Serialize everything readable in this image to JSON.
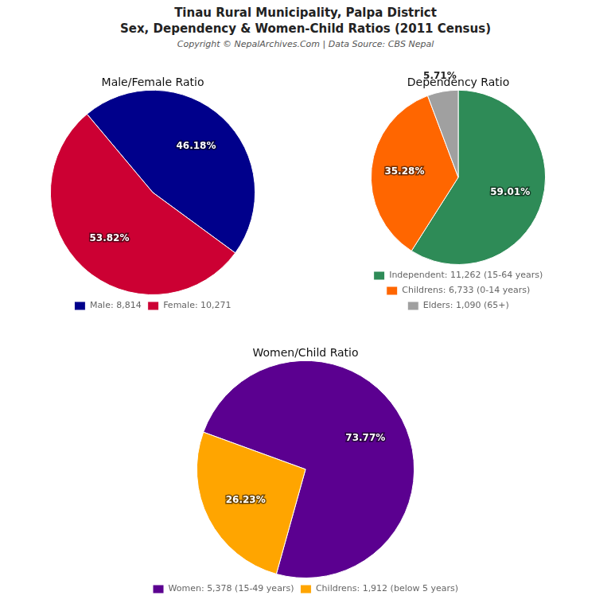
{
  "title": "Tinau Rural Municipality, Palpa District",
  "subtitle": "Sex, Dependency & Women-Child Ratios (2011 Census)",
  "annotations": [
    "Copyright © NepalArchives.Com | Data Source: CBS Nepal"
  ],
  "chart_data": [
    {
      "type": "pie",
      "title": "Male/Female Ratio",
      "categories": [
        "Male: 8,814",
        "Female: 10,271"
      ],
      "values": [
        46.18,
        53.82
      ],
      "value_labels": [
        "46.18%",
        "53.82%"
      ],
      "colors": [
        "#00008B",
        "#CC0033"
      ],
      "data_labels": true,
      "legend": "bottom"
    },
    {
      "type": "pie",
      "title": "Dependency Ratio",
      "categories": [
        "Independent: 11,262 (15-64 years)",
        "Childrens: 6,733 (0-14 years)",
        "Elders: 1,090 (65+)"
      ],
      "values": [
        59.01,
        35.28,
        5.71
      ],
      "value_labels": [
        "59.01%",
        "35.28%",
        "5.71%"
      ],
      "colors": [
        "#2E8B57",
        "#FF6600",
        "#A0A0A0"
      ],
      "data_labels": true,
      "legend": "bottom"
    },
    {
      "type": "pie",
      "title": "Women/Child Ratio",
      "categories": [
        "Women: 5,378 (15-49 years)",
        "Childrens: 1,912 (below 5 years)"
      ],
      "values": [
        73.77,
        26.23
      ],
      "value_labels": [
        "73.77%",
        "26.23%"
      ],
      "colors": [
        "#5B0090",
        "#FFA500"
      ],
      "data_labels": true,
      "legend": "bottom"
    }
  ]
}
